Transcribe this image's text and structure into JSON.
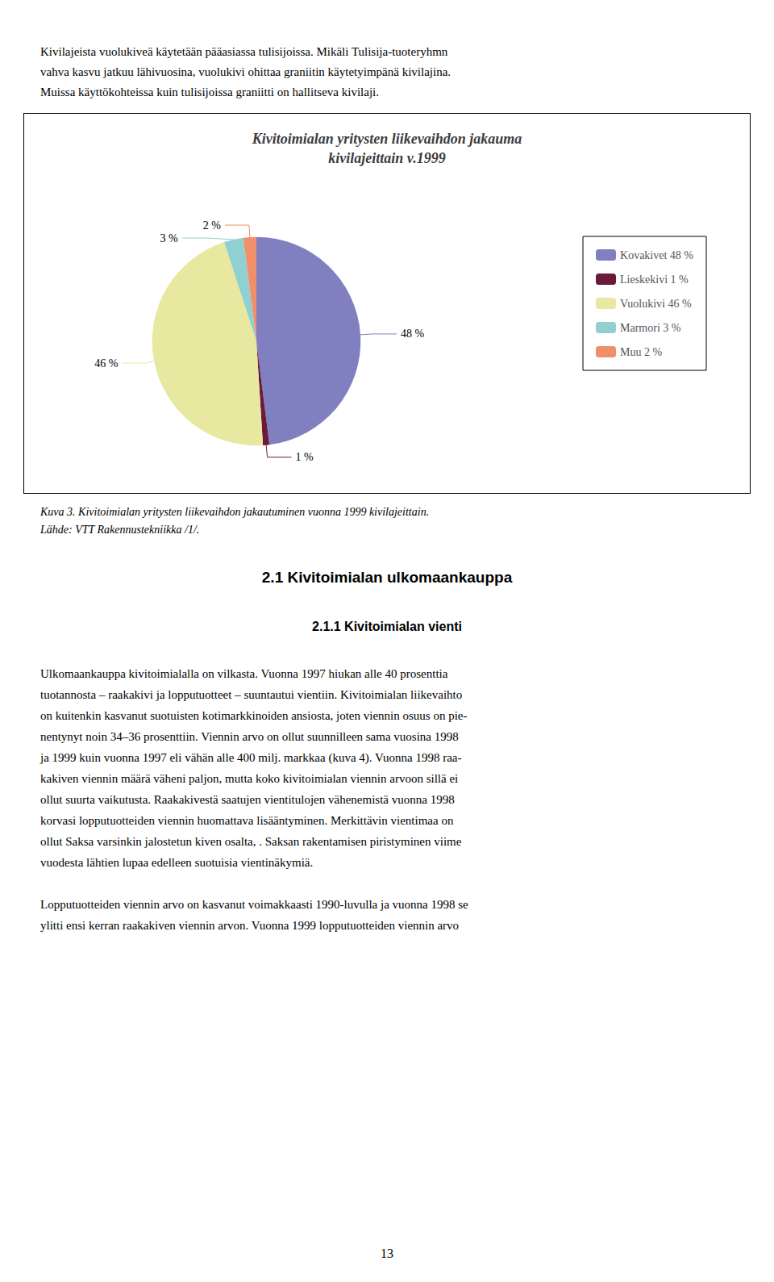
{
  "header_lines": [
    "Kivilajeista vuolukiveä käytetään pääasiassa tulisijoissa. Mikäli Tulisija-tuoteryhmn",
    "vahva kasvu jatkuu lähivuosina, vuolukivi ohittaa graniitin käytetyimpänä kivilajina.",
    "Muissa käyttökohteissa kuin tulisijoissa  graniitti on hallitseva kivilaji."
  ],
  "chart_data": {
    "type": "pie",
    "title": "Kivitoimialan yritysten liikevaihdon jakauma\nkivilajeittain v.1999",
    "categories": [
      "Kovakivet 48 %",
      "Lieskekivi 1 %",
      "Vuolukivi 46 %",
      "Marmori 3 %",
      "Muu 2 %"
    ],
    "values": [
      48,
      1,
      46,
      3,
      2
    ],
    "value_labels": [
      "48 %",
      "1 %",
      "46 %",
      "3 %",
      "2 %"
    ],
    "colors": [
      "#8080c0",
      "#6b1a3a",
      "#e8e8a0",
      "#90d0d0",
      "#f0906a"
    ],
    "data_labels": true,
    "legend": "right"
  },
  "caption_lines": [
    "Kuva 3. Kivitoimialan yritysten liikevaihdon jakautuminen vuonna 1999 kivilajeittain.",
    "Lähde: VTT Rakennustekniikka /1/."
  ],
  "section_title": "2.1  Kivitoimialan ulkomaankauppa",
  "subsection_title": "2.1.1  Kivitoimialan vienti",
  "body_paragraphs": [
    [
      "Ulkomaankauppa kivitoimialalla on vilkasta. Vuonna 1997 hiukan alle 40 prosenttia",
      "tuotannosta – raakakivi ja lopputuotteet – suuntautui vientiin. Kivitoimialan liikevaihto",
      "on kuitenkin kasvanut suotuisten kotimarkkinoiden ansiosta, joten viennin osuus on pie-",
      "nentynyt noin 34–36 prosenttiin. Viennin arvo on ollut suunnilleen sama vuosina 1998",
      "ja 1999 kuin vuonna 1997 eli vähän alle 400 milj. markkaa (kuva 4). Vuonna 1998 raa-",
      "kakiven viennin määrä väheni paljon, mutta koko kivitoimialan viennin arvoon sillä ei",
      "ollut suurta vaikutusta. Raakakivestä saatujen vientitulojen vähenemistä vuonna 1998",
      "korvasi lopputuotteiden viennin huomattava lisääntyminen. Merkittävin vientimaa on",
      "ollut Saksa varsinkin jalostetun kiven osalta, . Saksan rakentamisen piristyminen viime",
      "vuodesta lähtien lupaa edelleen suotuisia vientinäkymiä."
    ],
    [
      "Lopputuotteiden viennin arvo on kasvanut voimakkaasti 1990-luvulla ja vuonna 1998 se",
      "ylitti ensi kerran raakakiven viennin arvon. Vuonna 1999 lopputuotteiden viennin arvo"
    ]
  ],
  "page_number": "13"
}
